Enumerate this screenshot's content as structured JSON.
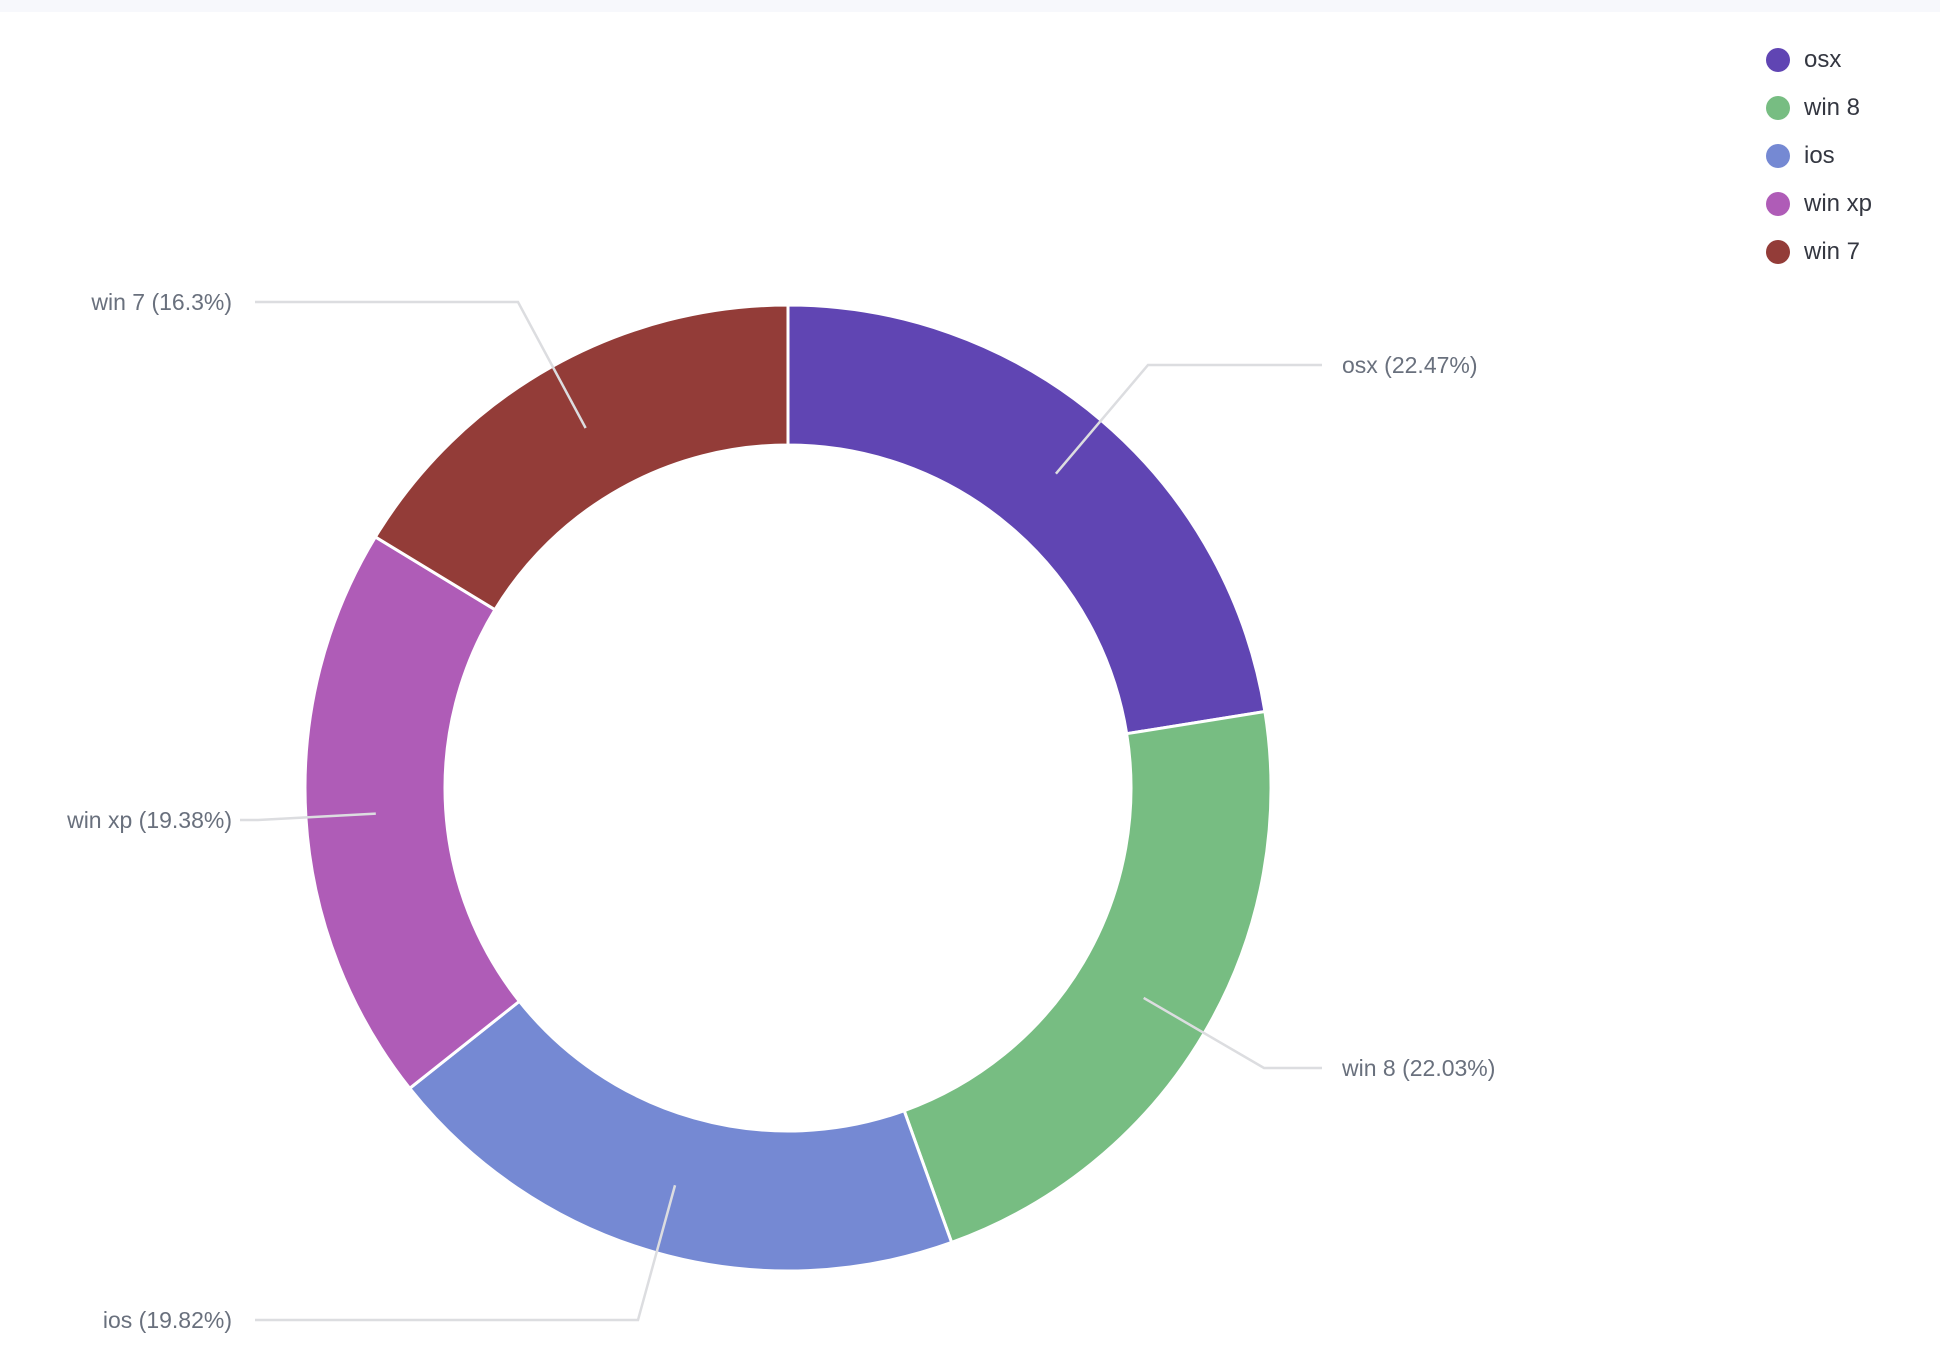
{
  "chart_data": {
    "type": "pie",
    "donut": true,
    "title": "",
    "legend_placement": "top-right",
    "slices": [
      {
        "name": "osx",
        "label": "osx (22.47%)",
        "value": 22.47,
        "color": "#6045b3"
      },
      {
        "name": "win 8",
        "label": "win 8 (22.03%)",
        "value": 22.03,
        "color": "#77bd82"
      },
      {
        "name": "ios",
        "label": "ios (19.82%)",
        "value": 19.82,
        "color": "#7589d3"
      },
      {
        "name": "win xp",
        "label": "win xp (19.38%)",
        "value": 19.38,
        "color": "#af5cb7"
      },
      {
        "name": "win 7",
        "label": "win 7 (16.3%)",
        "value": 16.3,
        "color": "#933c38"
      }
    ],
    "legend": [
      {
        "label": "osx",
        "color": "#6045b3"
      },
      {
        "label": "win 8",
        "color": "#77bd82"
      },
      {
        "label": "ios",
        "color": "#7589d3"
      },
      {
        "label": "win xp",
        "color": "#af5cb7"
      },
      {
        "label": "win 7",
        "color": "#933c38"
      }
    ]
  }
}
